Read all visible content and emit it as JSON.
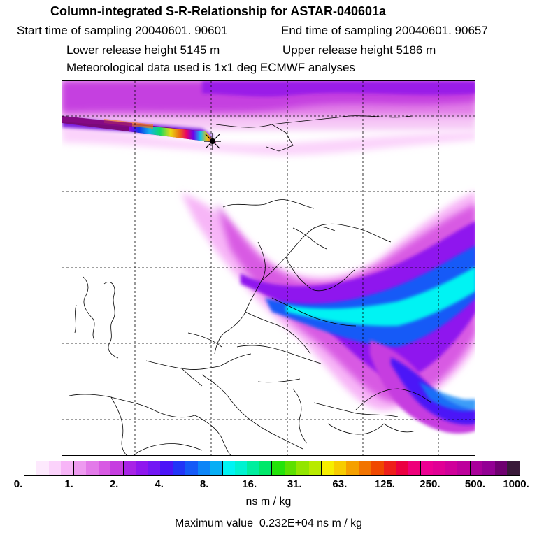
{
  "title": "Column-integrated S-R-Relationship for ASTAR-040601a",
  "start_time": "Start time of sampling 20040601. 90601",
  "end_time": "End time of sampling 20040601. 90657",
  "lower_release": "Lower release height 5145 m",
  "upper_release": "Upper release height 5186 m",
  "met_data": "Meteorological data used is 1x1 deg ECMWF analyses",
  "colorbar": {
    "labels": [
      "0.",
      "1.",
      "2.",
      "4.",
      "8.",
      "16.",
      "31.",
      "63.",
      "125.",
      "250.",
      "500.",
      "1000."
    ],
    "colors": [
      "#ffffff",
      "#fde9fd",
      "#fbd3fb",
      "#f7b5f7",
      "#ee9af0",
      "#e37ae9",
      "#d85ae3",
      "#c63ee0",
      "#a823e6",
      "#8f17ee",
      "#7317f4",
      "#4b14f7",
      "#2235f7",
      "#155af7",
      "#0d85f7",
      "#07aef5",
      "#00f3f3",
      "#00f2d0",
      "#00ee9e",
      "#00e86a",
      "#23e30a",
      "#5ce000",
      "#92e500",
      "#b8ea00",
      "#f6ee00",
      "#f7cc00",
      "#f5a000",
      "#f27400",
      "#f04800",
      "#ee1f1a",
      "#eb0040",
      "#ee007a",
      "#ed0093",
      "#e10095",
      "#d0009a",
      "#bd009c",
      "#a9009a",
      "#930094",
      "#6f0070",
      "#3a1a3a"
    ],
    "units": "ns m / kg"
  },
  "max_value_text": "Maximum value  0.232E+04 ns m / kg"
}
